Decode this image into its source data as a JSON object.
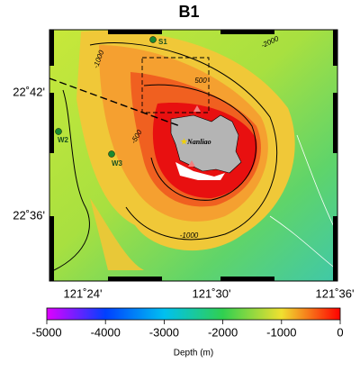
{
  "title": "B1",
  "lat_labels": [
    "22˚42'",
    "22˚36'"
  ],
  "lon_labels": [
    "121˚24'",
    "121˚30'",
    "121˚36'"
  ],
  "contour_labels": [
    "-1000",
    "-2000",
    "500",
    "-500",
    "-1000"
  ],
  "stations": [
    "S1",
    "W2",
    "W3"
  ],
  "place": "Nanliao",
  "colorbar": {
    "label": "Depth (m)",
    "lim": [
      -5000,
      0
    ],
    "ticks": [
      -5000,
      -4000,
      -3000,
      -2000,
      -1000,
      0
    ]
  }
}
